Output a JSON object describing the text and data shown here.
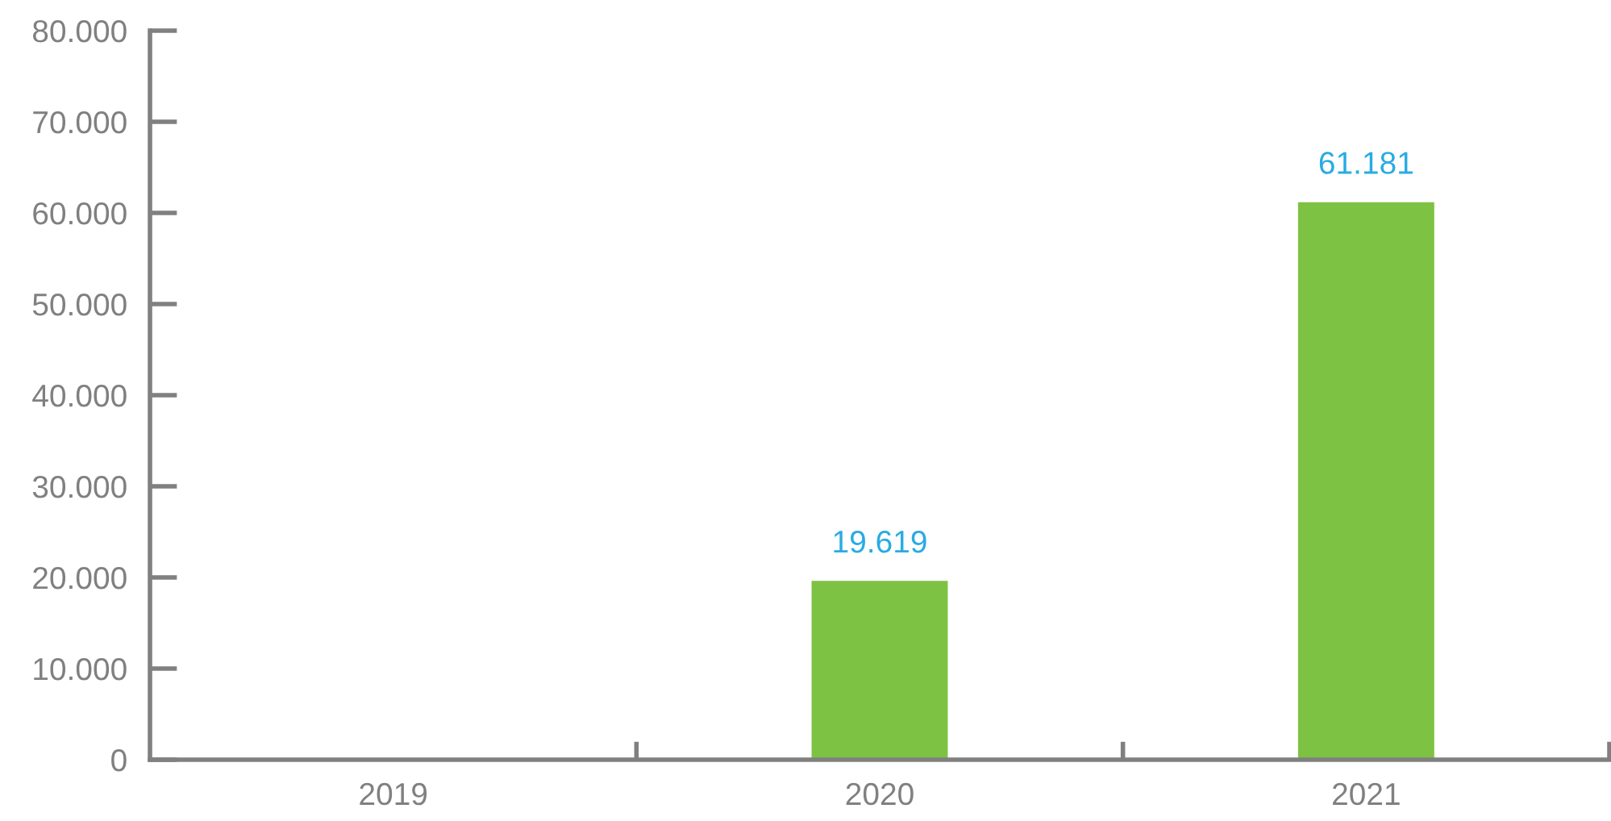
{
  "chart_data": {
    "type": "bar",
    "categories": [
      "2019",
      "2020",
      "2021"
    ],
    "values": [
      null,
      19619,
      61181
    ],
    "value_labels": [
      null,
      "19.619",
      "61.181"
    ],
    "color": "#7dc242",
    "ylim": [
      0,
      80000
    ],
    "yticks": [
      {
        "value": 0,
        "label": "0"
      },
      {
        "value": 10000,
        "label": "10.000"
      },
      {
        "value": 20000,
        "label": "20.000"
      },
      {
        "value": 30000,
        "label": "30.000"
      },
      {
        "value": 40000,
        "label": "40.000"
      },
      {
        "value": 50000,
        "label": "50.000"
      },
      {
        "value": 60000,
        "label": "60.000"
      },
      {
        "value": 70000,
        "label": "70.000"
      },
      {
        "value": 80000,
        "label": "80.000"
      }
    ],
    "grid": false,
    "legend": false
  }
}
